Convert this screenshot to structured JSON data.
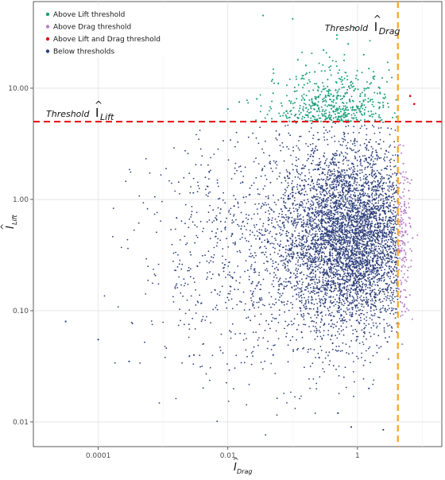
{
  "chart_data": {
    "type": "scatter",
    "x_scale": "log10",
    "y_scale": "log10",
    "xlim": [
      1e-05,
      20
    ],
    "ylim": [
      0.006,
      60
    ],
    "x_ticks": [
      {
        "value": 0.0001,
        "label": "0.0001"
      },
      {
        "value": 0.01,
        "label": "0.01"
      },
      {
        "value": 1,
        "label": "1"
      }
    ],
    "y_ticks": [
      {
        "value": 0.01,
        "label": "0.01"
      },
      {
        "value": 0.1,
        "label": "0.10"
      },
      {
        "value": 1,
        "label": "1.00"
      },
      {
        "value": 10,
        "label": "10.00"
      }
    ],
    "grid": true,
    "legend_position": "top-left",
    "xlabel": {
      "main": "I",
      "hat": "^",
      "sub": "Drag"
    },
    "ylabel": {
      "main": "I",
      "hat": "^",
      "sub": "Lift"
    },
    "thresholds": {
      "lift": {
        "value": 5,
        "color": "#e41a1c",
        "label_word": "Threshold",
        "symbol": "I",
        "hat": "^",
        "sub": "Lift"
      },
      "drag": {
        "value": 4.2,
        "color": "#f5a623",
        "label_word": "Threshold",
        "symbol": "I",
        "hat": "^",
        "sub": "Drag"
      }
    },
    "series": [
      {
        "name": "Above Lift threshold",
        "color": "#1b9e77",
        "points": [
          [
            0.035,
            45
          ],
          [
            0.1,
            42
          ],
          [
            0.12,
            18
          ],
          [
            0.16,
            16
          ],
          [
            0.3,
            22
          ],
          [
            0.48,
            30
          ],
          [
            0.72,
            25
          ],
          [
            1.25,
            20
          ],
          [
            0.9,
            35
          ],
          [
            0.55,
            12
          ],
          [
            0.22,
            14
          ],
          [
            0.05,
            9
          ],
          [
            0.028,
            8
          ],
          [
            0.06,
            11
          ],
          [
            1.5,
            15
          ],
          [
            2.5,
            7
          ],
          [
            0.015,
            7.5
          ],
          [
            0.01,
            6.5
          ],
          [
            0.65,
            9
          ],
          [
            0.4,
            7
          ],
          [
            1.1,
            8.5
          ],
          [
            0.18,
            6
          ],
          [
            2.2,
            10
          ],
          [
            0.08,
            6.2
          ]
        ]
      },
      {
        "name": "Above Drag threshold",
        "color": "#b87fc9",
        "points": [
          [
            4.8,
            0.6
          ],
          [
            5.5,
            0.3
          ],
          [
            6.2,
            1.2
          ],
          [
            4.6,
            0.12
          ],
          [
            5.1,
            2.1
          ],
          [
            7.1,
            0.45
          ],
          [
            4.9,
            0.05
          ],
          [
            6.0,
            0.2
          ],
          [
            5.3,
            0.9
          ],
          [
            4.7,
            1.7
          ]
        ]
      },
      {
        "name": "Above Lift and Drag threshold",
        "color": "#d7191c",
        "points": [
          [
            6.5,
            8.5
          ],
          [
            7.5,
            7.2
          ]
        ]
      },
      {
        "name": "Below thresholds",
        "color": "#2c3e7a",
        "points": [
          [
            3.15e-05,
            0.08
          ],
          [
            0.0001,
            0.055
          ],
          [
            0.0003,
            0.035
          ],
          [
            0.003,
            0.04
          ],
          [
            0.4,
            0.5
          ],
          [
            1.2,
            0.8
          ],
          [
            0.2,
            1.5
          ],
          [
            2,
            2.5
          ],
          [
            0.1,
            0.3
          ],
          [
            0.05,
            0.04
          ],
          [
            1.5,
            0.02
          ],
          [
            0.5,
            0.012
          ],
          [
            0.8,
            0.009
          ],
          [
            2.5,
            0.0085
          ]
        ]
      }
    ]
  }
}
